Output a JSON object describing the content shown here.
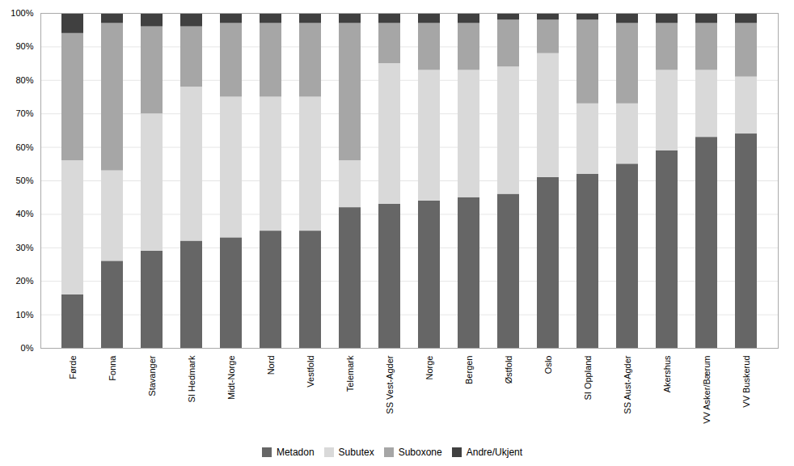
{
  "chart_data": {
    "type": "bar",
    "stacked": true,
    "categories": [
      "Førde",
      "Fonna",
      "Stavanger",
      "SI Hedmark",
      "Midt-Norge",
      "Nord",
      "Vestfold",
      "Telemark",
      "SS Vest-Agder",
      "Norge",
      "Bergen",
      "Østfold",
      "Oslo",
      "SI Oppland",
      "SS Aust-Agder",
      "Akershus",
      "VV Asker/Bærum",
      "VV Buskerud"
    ],
    "series": [
      {
        "name": "Metadon",
        "color": "#666666",
        "values": [
          16,
          26,
          29,
          32,
          33,
          35,
          35,
          42,
          43,
          44,
          45,
          46,
          51,
          52,
          55,
          59,
          63,
          64
        ]
      },
      {
        "name": "Subutex",
        "color": "#d9d9d9",
        "values": [
          40,
          27,
          41,
          46,
          42,
          40,
          40,
          14,
          42,
          39,
          38,
          38,
          37,
          21,
          18,
          24,
          20,
          17
        ]
      },
      {
        "name": "Suboxone",
        "color": "#a6a6a6",
        "values": [
          38,
          44,
          26,
          18,
          22,
          22,
          22,
          41,
          12,
          14,
          14,
          14,
          10,
          25,
          24,
          14,
          14,
          16
        ]
      },
      {
        "name": "Andre/Ukjent",
        "color": "#404040",
        "values": [
          6,
          3,
          4,
          4,
          3,
          3,
          3,
          3,
          3,
          3,
          3,
          2,
          2,
          2,
          3,
          3,
          3,
          3
        ]
      }
    ],
    "ylim": [
      0,
      100
    ],
    "yticks": [
      {
        "value": 0,
        "label": "0%"
      },
      {
        "value": 10,
        "label": "10%"
      },
      {
        "value": 20,
        "label": "20%"
      },
      {
        "value": 30,
        "label": "30%"
      },
      {
        "value": 40,
        "label": "40%"
      },
      {
        "value": 50,
        "label": "50%"
      },
      {
        "value": 60,
        "label": "60%"
      },
      {
        "value": 70,
        "label": "70%"
      },
      {
        "value": 80,
        "label": "80%"
      },
      {
        "value": 90,
        "label": "90%"
      },
      {
        "value": 100,
        "label": "100%"
      }
    ],
    "grid": true,
    "legend": "bottom"
  }
}
